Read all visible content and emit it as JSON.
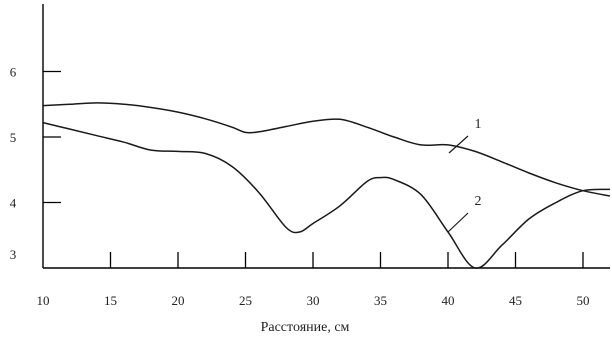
{
  "chart_data": {
    "type": "line",
    "title": "",
    "xlabel": "Расстояние, см",
    "ylabel": "",
    "xlim": [
      10,
      52
    ],
    "ylim": [
      3,
      6.5
    ],
    "grid": false,
    "x_ticks": [
      10,
      15,
      20,
      25,
      30,
      35,
      40,
      45,
      50
    ],
    "y_ticks": [
      3,
      4,
      5,
      6
    ],
    "series": [
      {
        "name": "1",
        "x": [
          10,
          12,
          14,
          16,
          18,
          20,
          22,
          24,
          25,
          26,
          28,
          30,
          32,
          34,
          36,
          38,
          40,
          42,
          44,
          46,
          48,
          50,
          52
        ],
        "y": [
          5.48,
          5.5,
          5.52,
          5.5,
          5.45,
          5.38,
          5.28,
          5.15,
          5.07,
          5.08,
          5.16,
          5.24,
          5.27,
          5.15,
          5.0,
          4.88,
          4.88,
          4.78,
          4.62,
          4.45,
          4.3,
          4.18,
          4.1
        ]
      },
      {
        "name": "2",
        "x": [
          10,
          12,
          14,
          16,
          18,
          20,
          22,
          24,
          26,
          28,
          29,
          30,
          32,
          34,
          35,
          36,
          38,
          40,
          42,
          44,
          46,
          48,
          50,
          52
        ],
        "y": [
          5.22,
          5.12,
          5.02,
          4.92,
          4.8,
          4.78,
          4.75,
          4.55,
          4.15,
          3.62,
          3.55,
          3.68,
          3.95,
          4.32,
          4.38,
          4.35,
          4.12,
          3.55,
          2.98,
          3.35,
          3.75,
          4.0,
          4.18,
          4.2
        ]
      }
    ]
  }
}
